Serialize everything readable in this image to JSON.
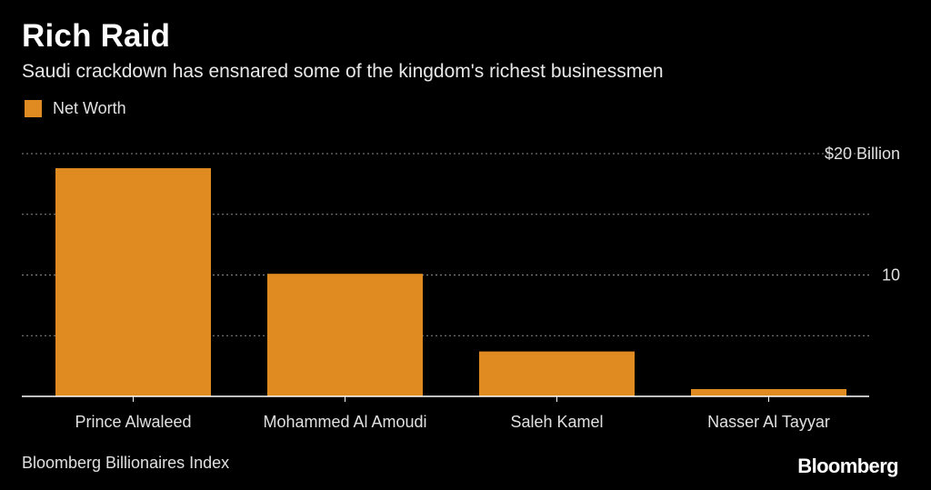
{
  "chart_data": {
    "type": "bar",
    "title": "Rich Raid",
    "subtitle": "Saudi crackdown has ensnared some of the kingdom's richest businessmen",
    "categories": [
      "Prince Alwaleed",
      "Mohammed Al Amoudi",
      "Saleh Kamel",
      "Nasser Al Tayyar"
    ],
    "series": [
      {
        "name": "Net Worth",
        "values": [
          18.8,
          10.1,
          3.7,
          0.6
        ]
      }
    ],
    "unit": "Billion USD",
    "ylim": [
      0,
      20
    ],
    "yticks": [
      {
        "value": 0,
        "label": ""
      },
      {
        "value": 5,
        "label": ""
      },
      {
        "value": 10,
        "label": "10"
      },
      {
        "value": 15,
        "label": ""
      },
      {
        "value": 20,
        "label": "$20 Billion"
      }
    ],
    "grid": true,
    "y_axis_side": "right",
    "legend_position": "top-left",
    "bar_color": "#e08a22",
    "source": "Bloomberg Billionaires Index",
    "brand": "Bloomberg"
  }
}
